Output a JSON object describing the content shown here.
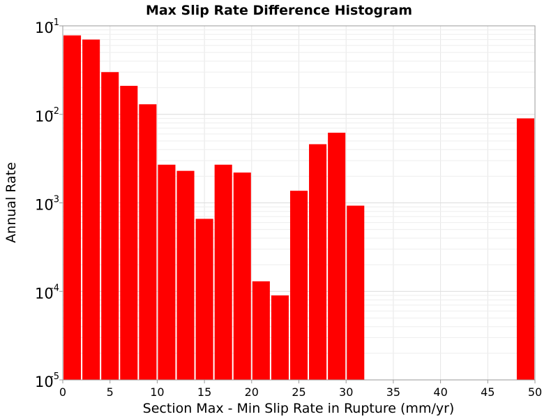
{
  "chart_data": {
    "type": "bar",
    "title": "Max Slip Rate Difference Histogram",
    "xlabel": "Section Max - Min Slip Rate in Rupture (mm/yr)",
    "ylabel": "Annual Rate",
    "xlim": [
      0,
      50
    ],
    "ylim": [
      1e-05,
      0.1
    ],
    "yscale": "log",
    "grid": true,
    "bar_color": "#ff0000",
    "bin_width": 2,
    "x_ticks": [
      "0",
      "5",
      "10",
      "15",
      "20",
      "25",
      "30",
      "35",
      "40",
      "45",
      "50"
    ],
    "y_ticks": [
      {
        "base": "10",
        "exp": "-5"
      },
      {
        "base": "10",
        "exp": "-4"
      },
      {
        "base": "10",
        "exp": "-3"
      },
      {
        "base": "10",
        "exp": "-2"
      },
      {
        "base": "10",
        "exp": "-1"
      }
    ],
    "bars": [
      {
        "x": 1,
        "value": 0.078
      },
      {
        "x": 3,
        "value": 0.07
      },
      {
        "x": 5,
        "value": 0.03
      },
      {
        "x": 7,
        "value": 0.021
      },
      {
        "x": 9,
        "value": 0.013
      },
      {
        "x": 11,
        "value": 0.0027
      },
      {
        "x": 13,
        "value": 0.0023
      },
      {
        "x": 15,
        "value": 0.00066
      },
      {
        "x": 17,
        "value": 0.0027
      },
      {
        "x": 19,
        "value": 0.0022
      },
      {
        "x": 21,
        "value": 0.00013
      },
      {
        "x": 23,
        "value": 9e-05
      },
      {
        "x": 25,
        "value": 0.00137
      },
      {
        "x": 27,
        "value": 0.0046
      },
      {
        "x": 29,
        "value": 0.0062
      },
      {
        "x": 31,
        "value": 0.00093
      },
      {
        "x": 49,
        "value": 0.009
      }
    ]
  }
}
